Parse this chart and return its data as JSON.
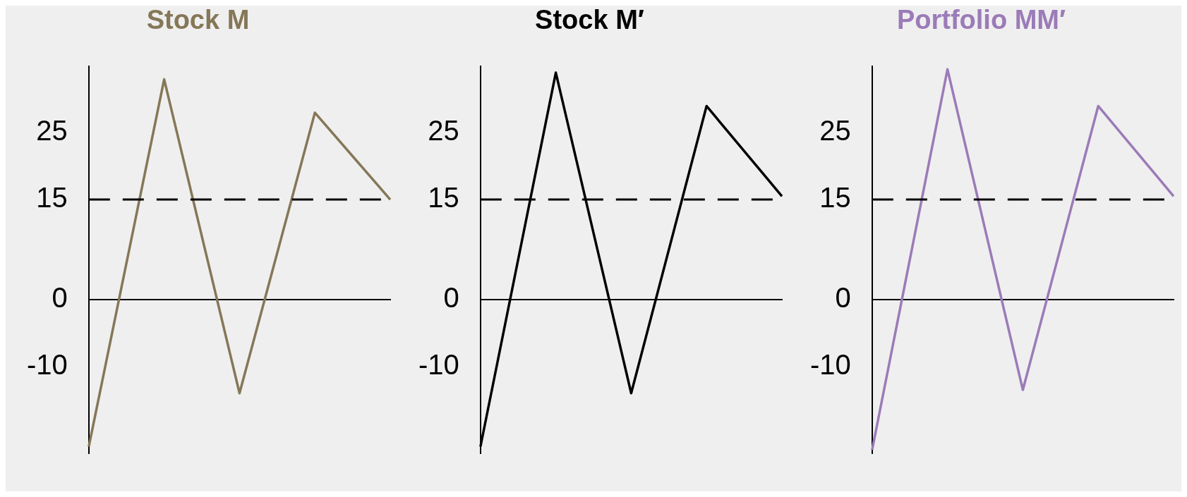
{
  "chart_data": [
    {
      "type": "line",
      "title": "Stock M",
      "categories": [
        null,
        null,
        null,
        null,
        null
      ],
      "series": [
        {
          "color": "#857757",
          "values": [
            -22,
            33,
            -14,
            28,
            15
          ]
        }
      ],
      "ylim": [
        -23,
        35
      ],
      "yticks": [
        -10,
        0,
        15,
        25
      ],
      "tick_labels": "y",
      "grid": false,
      "legend": false,
      "marker": "none",
      "ref_lines": [
        {
          "axis": "y",
          "value": 15,
          "color": "#000000",
          "line_style": "dashed"
        }
      ]
    },
    {
      "type": "line",
      "title": "Stock M′",
      "categories": [
        null,
        null,
        null,
        null,
        null
      ],
      "series": [
        {
          "color": "#000000",
          "values": [
            -22,
            34,
            -14,
            29,
            15.5
          ]
        }
      ],
      "ylim": [
        -23,
        35
      ],
      "yticks": [
        -10,
        0,
        15,
        25
      ],
      "tick_labels": "y",
      "grid": false,
      "legend": false,
      "marker": "none",
      "ref_lines": [
        {
          "axis": "y",
          "value": 15,
          "color": "#000000",
          "line_style": "dashed"
        }
      ]
    },
    {
      "type": "line",
      "title": "Portfolio MM′",
      "categories": [
        null,
        null,
        null,
        null,
        null
      ],
      "series": [
        {
          "color": "#9b7bb8",
          "values": [
            -22.5,
            34.5,
            -13.5,
            29,
            15.5
          ]
        }
      ],
      "ylim": [
        -23,
        35
      ],
      "yticks": [
        -10,
        0,
        15,
        25
      ],
      "tick_labels": "y",
      "grid": false,
      "legend": false,
      "marker": "none",
      "ref_lines": [
        {
          "axis": "y",
          "value": 15,
          "color": "#000000",
          "line_style": "dashed"
        }
      ]
    }
  ]
}
